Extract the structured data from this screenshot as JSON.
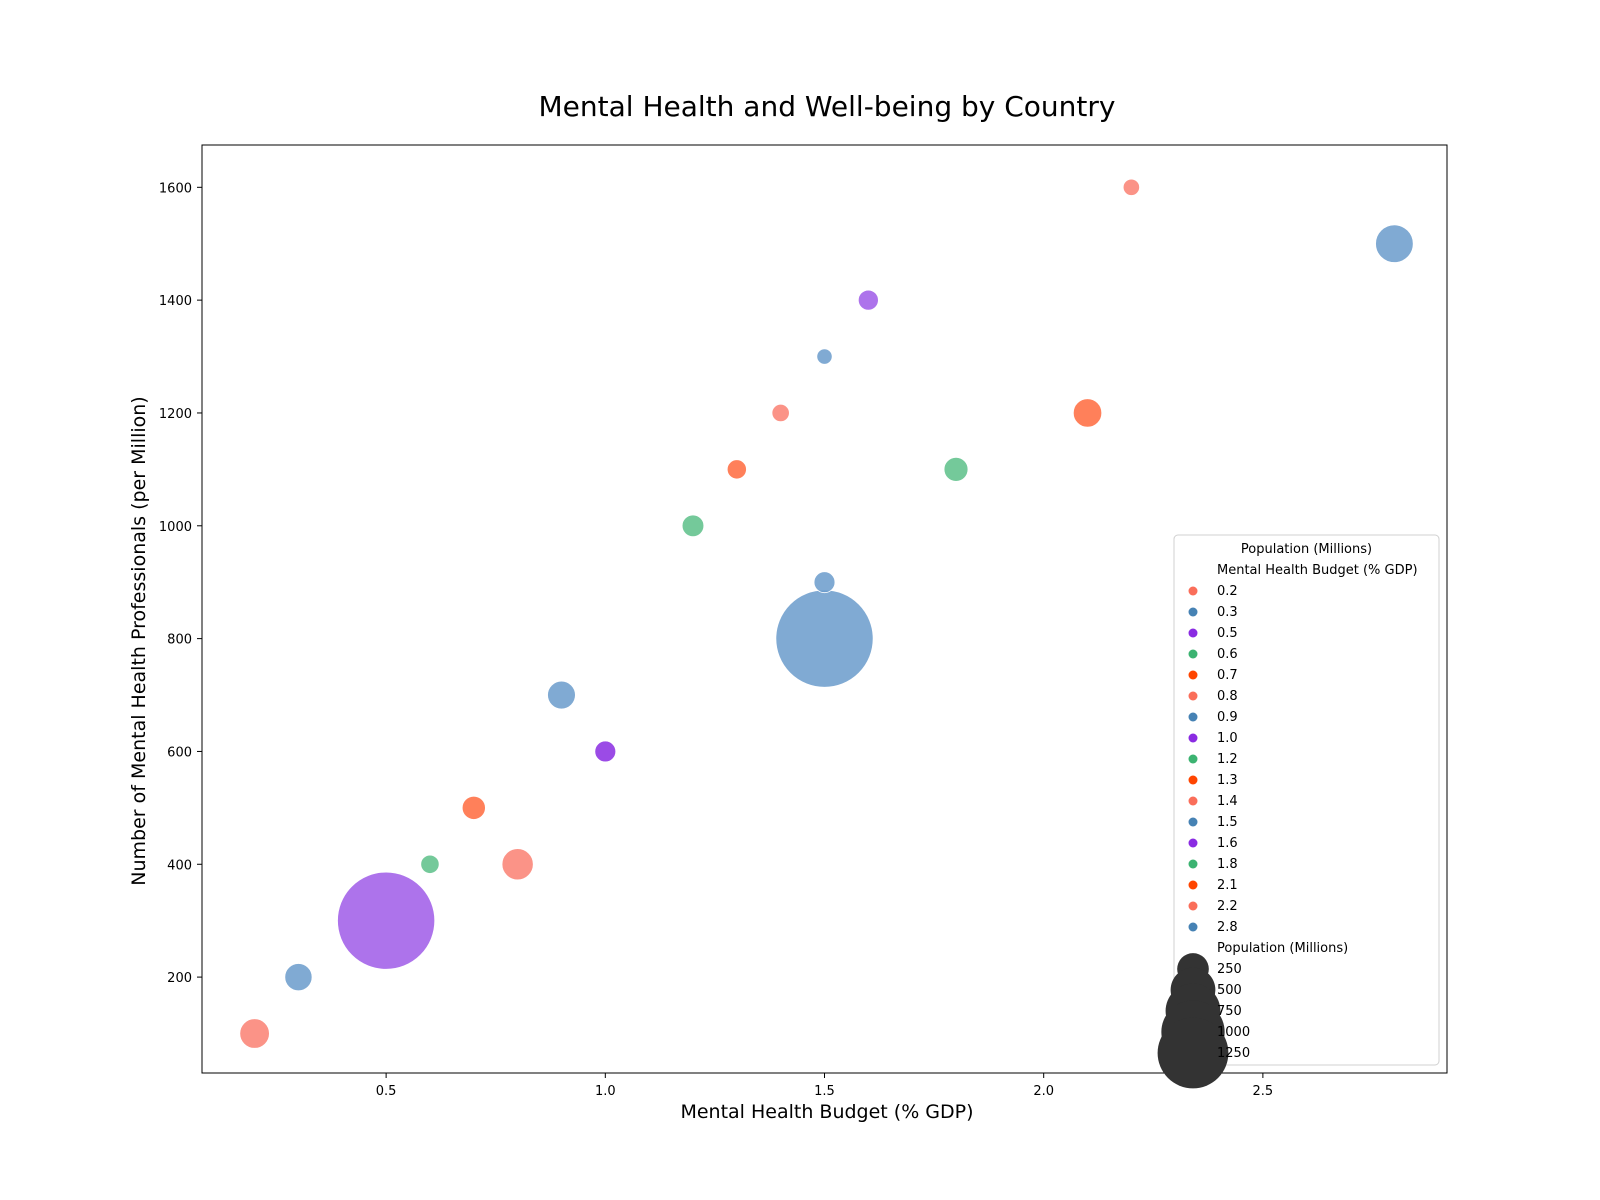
{
  "chart_data": {
    "type": "scatter",
    "title": "Mental Health and Well-being by Country",
    "xlabel": "Mental Health Budget (% GDP)",
    "ylabel": "Number of Mental Health Professionals (per Million)",
    "xlim": [
      0.08,
      2.92
    ],
    "ylim": [
      30,
      1675
    ],
    "xticks": [
      0.5,
      1.0,
      1.5,
      2.0,
      2.5
    ],
    "xtick_labels": [
      "0.5",
      "1.0",
      "1.5",
      "2.0",
      "2.5"
    ],
    "yticks": [
      200,
      400,
      600,
      800,
      1000,
      1200,
      1400,
      1600
    ],
    "ytick_labels": [
      "200",
      "400",
      "600",
      "800",
      "1000",
      "1200",
      "1400",
      "1600"
    ],
    "grid": false,
    "legend_placement": "lower right",
    "points": [
      {
        "x": 0.2,
        "y": 100,
        "size": 130,
        "color": "#fa8072"
      },
      {
        "x": 0.3,
        "y": 200,
        "size": 110,
        "color": "#6a9bcb"
      },
      {
        "x": 0.5,
        "y": 300,
        "size": 1400,
        "color": "#9f5be8"
      },
      {
        "x": 0.6,
        "y": 400,
        "size": 50,
        "color": "#5cbf88"
      },
      {
        "x": 0.7,
        "y": 500,
        "size": 80,
        "color": "#ff6a3d"
      },
      {
        "x": 0.8,
        "y": 400,
        "size": 145,
        "color": "#fa8072"
      },
      {
        "x": 0.9,
        "y": 700,
        "size": 115,
        "color": "#6a9bcb"
      },
      {
        "x": 1.0,
        "y": 600,
        "size": 65,
        "color": "#8a2be2"
      },
      {
        "x": 1.2,
        "y": 1000,
        "size": 70,
        "color": "#5cbf88"
      },
      {
        "x": 1.3,
        "y": 1100,
        "size": 55,
        "color": "#ff6a3d"
      },
      {
        "x": 1.4,
        "y": 1200,
        "size": 45,
        "color": "#fa8072"
      },
      {
        "x": 1.5,
        "y": 1300,
        "size": 35,
        "color": "#6a9bcb"
      },
      {
        "x": 1.5,
        "y": 900,
        "size": 65,
        "color": "#6a9bcb"
      },
      {
        "x": 1.5,
        "y": 800,
        "size": 1400,
        "color": "#6a9bcb"
      },
      {
        "x": 1.6,
        "y": 1400,
        "size": 60,
        "color": "#9f5be8"
      },
      {
        "x": 1.8,
        "y": 1100,
        "size": 85,
        "color": "#5cbf88"
      },
      {
        "x": 2.1,
        "y": 1200,
        "size": 120,
        "color": "#ff6a3d"
      },
      {
        "x": 2.2,
        "y": 1600,
        "size": 40,
        "color": "#fa8072"
      },
      {
        "x": 2.8,
        "y": 1500,
        "size": 210,
        "color": "#6a9bcb"
      }
    ],
    "legend": {
      "title": "Population (Millions)",
      "hue_title": "Mental Health Budget (% GDP)",
      "hue_entries": [
        {
          "label": "0.2",
          "color": "#fa6e5a"
        },
        {
          "label": "0.3",
          "color": "#4682b4"
        },
        {
          "label": "0.5",
          "color": "#8a2be2"
        },
        {
          "label": "0.6",
          "color": "#3cb371"
        },
        {
          "label": "0.7",
          "color": "#ff4500"
        },
        {
          "label": "0.8",
          "color": "#fa6e5a"
        },
        {
          "label": "0.9",
          "color": "#4682b4"
        },
        {
          "label": "1.0",
          "color": "#8a2be2"
        },
        {
          "label": "1.2",
          "color": "#3cb371"
        },
        {
          "label": "1.3",
          "color": "#ff4500"
        },
        {
          "label": "1.4",
          "color": "#fa6e5a"
        },
        {
          "label": "1.5",
          "color": "#4682b4"
        },
        {
          "label": "1.6",
          "color": "#8a2be2"
        },
        {
          "label": "1.8",
          "color": "#3cb371"
        },
        {
          "label": "2.1",
          "color": "#ff4500"
        },
        {
          "label": "2.2",
          "color": "#fa6e5a"
        },
        {
          "label": "2.8",
          "color": "#4682b4"
        }
      ],
      "size_title": "Population (Millions)",
      "size_entries": [
        {
          "label": "250",
          "size": 250
        },
        {
          "label": "500",
          "size": 500
        },
        {
          "label": "750",
          "size": 750
        },
        {
          "label": "1000",
          "size": 1000
        },
        {
          "label": "1250",
          "size": 1250
        }
      ],
      "size_color": "#333333"
    }
  }
}
